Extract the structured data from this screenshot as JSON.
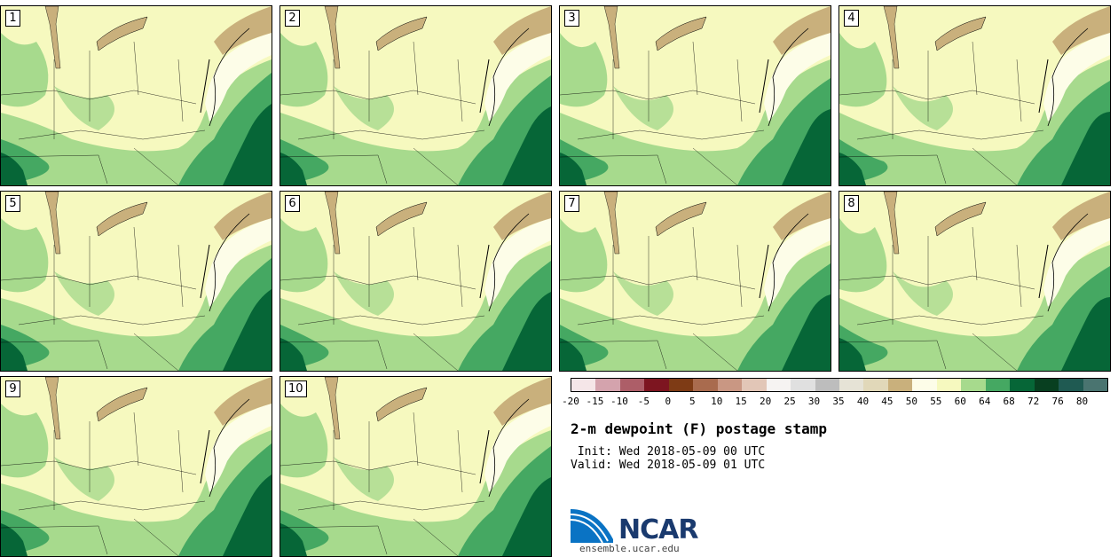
{
  "panels": [
    {
      "label": "1"
    },
    {
      "label": "2"
    },
    {
      "label": "3"
    },
    {
      "label": "4"
    },
    {
      "label": "5"
    },
    {
      "label": "6"
    },
    {
      "label": "7"
    },
    {
      "label": "8"
    },
    {
      "label": "9"
    },
    {
      "label": "10"
    }
  ],
  "colorbar": {
    "colors": [
      "#f5e6e8",
      "#d4a3ad",
      "#ad5e68",
      "#7d1520",
      "#7e3b15",
      "#a96b4e",
      "#c99783",
      "#e2c6b7",
      "#f6f3f2",
      "#e0e0e0",
      "#bdbdbd",
      "#e6e3d6",
      "#e1d8b9",
      "#c9b07c",
      "#fdfde8",
      "#f6f9bf",
      "#a7da8d",
      "#45a862",
      "#066637",
      "#083f20",
      "#1f5a52",
      "#4a7470"
    ],
    "ticks": [
      "-20",
      "-15",
      "-10",
      "-5",
      "0",
      "5",
      "10",
      "15",
      "20",
      "25",
      "30",
      "35",
      "40",
      "45",
      "50",
      "55",
      "60",
      "64",
      "68",
      "72",
      "76",
      "80"
    ]
  },
  "title": "2-m dewpoint (F) postage stamp",
  "init_text": " Init: Wed 2018-05-09 00 UTC",
  "valid_text": "Valid: Wed 2018-05-09 01 UTC",
  "logo_text": "NCAR",
  "site_text": "ensemble.ucar.edu",
  "map_colors": {
    "land": "#f6f9bf",
    "light_green": "#a7da8d",
    "mid_green": "#45a862",
    "dark_green": "#066637",
    "tan": "#c9b07c",
    "cream": "#fdfde8"
  }
}
